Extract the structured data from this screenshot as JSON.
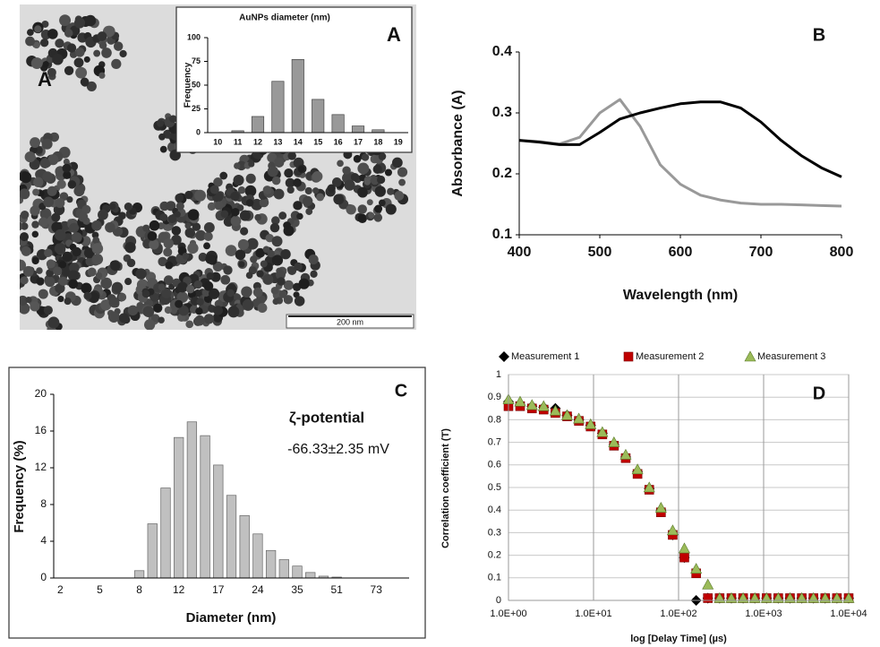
{
  "image_panel": {
    "label": "A",
    "scale_bar": "200 nm"
  },
  "chart_data": [
    {
      "type": "bar",
      "title": "AuNPs diameter (nm)",
      "panel_label": "A",
      "y_label": "Frequency",
      "categories": [
        "10",
        "11",
        "12",
        "13",
        "14",
        "15",
        "16",
        "17",
        "18",
        "19"
      ],
      "values": [
        0,
        2,
        17,
        54,
        77,
        35,
        19,
        7,
        3,
        0
      ],
      "color": "#999999",
      "ylim": [
        0,
        100
      ],
      "yticks": [
        0,
        25,
        50,
        75,
        100
      ],
      "grid": false
    },
    {
      "type": "line",
      "panel_label": "B",
      "x_label": "Wavelength (nm)",
      "y_label": "Absorbance (A)",
      "x": [
        400,
        425,
        450,
        475,
        500,
        525,
        550,
        575,
        600,
        625,
        650,
        675,
        700,
        725,
        750,
        775,
        800
      ],
      "series": [
        {
          "color": "#999999",
          "values": [
            0.255,
            0.253,
            0.249,
            0.26,
            0.3,
            0.322,
            0.278,
            0.215,
            0.183,
            0.165,
            0.157,
            0.152,
            0.15,
            0.15,
            0.149,
            0.148,
            0.147
          ]
        },
        {
          "color": "#000000",
          "values": [
            0.255,
            0.252,
            0.248,
            0.248,
            0.268,
            0.29,
            0.3,
            0.308,
            0.315,
            0.318,
            0.318,
            0.308,
            0.285,
            0.255,
            0.23,
            0.21,
            0.195
          ]
        }
      ],
      "xlim": [
        400,
        800
      ],
      "xticks": [
        400,
        500,
        600,
        700,
        800
      ],
      "ylim": [
        0.1,
        0.4
      ],
      "yticks": [
        0.1,
        0.2,
        0.3,
        0.4
      ],
      "grid": false
    },
    {
      "type": "bar",
      "panel_label": "C",
      "x_label": "Diameter (nm)",
      "y_label": "Frequency (%)",
      "annotations": [
        "ζ-potential",
        "-66.33±2.35 mV"
      ],
      "categories": [
        "2",
        null,
        null,
        "5",
        null,
        null,
        "8",
        null,
        null,
        "12",
        null,
        null,
        "17",
        null,
        null,
        "24",
        null,
        null,
        "35",
        null,
        null,
        "51",
        null,
        null,
        "73",
        null,
        null
      ],
      "values": [
        0,
        0,
        0,
        0,
        0,
        0,
        0.8,
        5.9,
        9.8,
        15.3,
        17,
        15.5,
        12.3,
        9,
        6.8,
        4.8,
        3,
        2,
        1.3,
        0.6,
        0.2,
        0.1,
        0,
        0,
        0,
        0,
        0
      ],
      "color": "#c0c0c0",
      "ylim": [
        0,
        20
      ],
      "yticks": [
        0,
        4,
        8,
        12,
        16,
        20
      ],
      "grid": false
    },
    {
      "type": "scatter",
      "panel_label": "D",
      "x_label": "log [Delay Time] (µs)",
      "y_label": "Correlation coefficient (T)",
      "x": [
        1,
        1.37,
        1.89,
        2.59,
        3.56,
        4.89,
        6.72,
        9.24,
        12.7,
        17.4,
        23.9,
        32.9,
        45.2,
        62.1,
        85.3,
        117,
        161,
        221,
        304,
        418,
        574,
        788,
        1083,
        1487,
        2043,
        2807,
        3857,
        5298,
        7279,
        10000
      ],
      "series": [
        {
          "name": "Measurement 1",
          "color": "#000000",
          "marker": "diamond",
          "values": [
            0.88,
            0.865,
            0.86,
            0.855,
            0.85,
            0.82,
            0.8,
            0.775,
            0.74,
            0.69,
            0.635,
            0.57,
            0.495,
            0.4,
            0.29,
            0.19,
            0,
            0.01,
            0.01,
            0.01,
            0.01,
            0.01,
            0.01,
            0.01,
            0.01,
            0.01,
            0.01,
            0.01,
            0.01,
            0.01
          ]
        },
        {
          "name": "Measurement 2",
          "color": "#c00000",
          "marker": "square",
          "values": [
            0.86,
            0.86,
            0.85,
            0.845,
            0.83,
            0.815,
            0.795,
            0.77,
            0.735,
            0.685,
            0.63,
            0.56,
            0.49,
            0.39,
            0.29,
            0.19,
            0.12,
            0.01,
            0.01,
            0.01,
            0.01,
            0.01,
            0.01,
            0.01,
            0.01,
            0.01,
            0.01,
            0.01,
            0.01,
            0.01
          ]
        },
        {
          "name": "Measurement 3",
          "color": "#9bbb59",
          "marker": "triangle",
          "values": [
            0.89,
            0.88,
            0.865,
            0.86,
            0.84,
            0.82,
            0.805,
            0.78,
            0.745,
            0.7,
            0.645,
            0.58,
            0.5,
            0.41,
            0.31,
            0.23,
            0.14,
            0.07,
            0.01,
            0.01,
            0.01,
            0.01,
            0.01,
            0.01,
            0.01,
            0.01,
            0.01,
            0.01,
            0.01,
            0.01
          ]
        }
      ],
      "xscale": "log",
      "xlim": [
        1,
        10000
      ],
      "xticks": [
        {
          "value": 1,
          "label": "1.0E+00"
        },
        {
          "value": 10,
          "label": "1.0E+01"
        },
        {
          "value": 100,
          "label": "1.0E+02"
        },
        {
          "value": 1000,
          "label": "1.0E+03"
        },
        {
          "value": 10000,
          "label": "1.0E+04"
        }
      ],
      "ylim": [
        0,
        1
      ],
      "yticks": [
        0,
        0.1,
        0.2,
        0.3,
        0.4,
        0.5,
        0.6,
        0.7,
        0.8,
        0.9,
        1
      ],
      "grid": true,
      "legend": "top"
    }
  ]
}
